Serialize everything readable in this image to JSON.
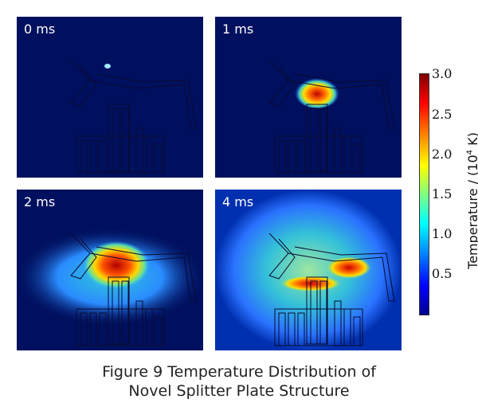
{
  "panels": [
    {
      "label": "0 ms"
    },
    {
      "label": "1 ms"
    },
    {
      "label": "2 ms"
    },
    {
      "label": "4 ms"
    }
  ],
  "colorbar": {
    "ticks": [
      "3.0",
      "2.5",
      "2.0",
      "1.5",
      "1.0",
      "0.5"
    ],
    "label_prefix": "Temperature / (10",
    "label_exp": "4",
    "label_suffix": " K)",
    "min": 0,
    "max": 3.0,
    "colormap": "jet"
  },
  "caption": {
    "line1": "Figure 9 Temperature Distribution of",
    "line2": "Novel Splitter Plate Structure"
  },
  "colors": {
    "background": "#00105f",
    "hot": "#b30000",
    "warm": "#ffd500",
    "mid": "#3fd0b8",
    "cool": "#2a6cff"
  }
}
